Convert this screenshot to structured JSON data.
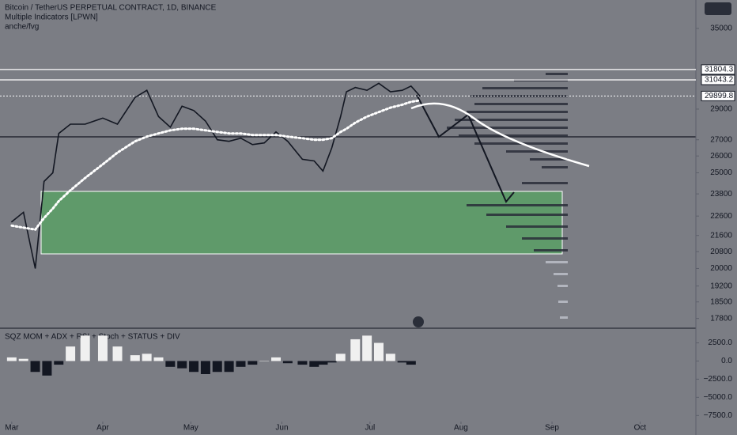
{
  "chart_data": [
    {
      "type": "line",
      "title": "Bitcoin / TetherUS PERPETUAL CONTRACT, 1D, BINANCE",
      "indicators": [
        "Multiple Indicators [LPWN]",
        "anche/fvg"
      ],
      "log_scale": true,
      "x": [
        0,
        4,
        8,
        11,
        14,
        16,
        20,
        25,
        31,
        36,
        42,
        46,
        50,
        54,
        58,
        62,
        66,
        70,
        74,
        78,
        82,
        86,
        90,
        94,
        99,
        103,
        106,
        109,
        112,
        114,
        117,
        121,
        125,
        129,
        133,
        136,
        139
      ],
      "series": [
        {
          "color": "#131722",
          "values": [
            22300,
            22800,
            20000,
            24500,
            25000,
            27400,
            28000,
            28000,
            28400,
            28000,
            29800,
            30300,
            28500,
            27800,
            29200,
            28900,
            28200,
            27000,
            26900,
            27100,
            26700,
            26800,
            27500,
            26900,
            25800,
            25700,
            25100,
            26500,
            28500,
            30200,
            30500,
            30300,
            30800,
            30200,
            30300,
            30600,
            29900
          ]
        },
        {
          "color": "#ffffff",
          "style": "dots",
          "values": [
            22100,
            22000,
            21900,
            22500,
            23000,
            23400,
            24000,
            24700,
            25500,
            26200,
            26900,
            27200,
            27400,
            27600,
            27700,
            27700,
            27600,
            27500,
            27400,
            27400,
            27300,
            27300,
            27300,
            27200,
            27100,
            27000,
            27000,
            27100,
            27500,
            27700,
            28100,
            28500,
            28800,
            29100,
            29300,
            29500,
            29600
          ]
        }
      ],
      "levels": [
        31804.3,
        31043.2,
        29899.8
      ],
      "xlim": [
        -4,
        233
      ],
      "xticks": [
        {
          "value": 0,
          "label": "Mar"
        },
        {
          "value": 31,
          "label": "Apr"
        },
        {
          "value": 61,
          "label": "May"
        },
        {
          "value": 92,
          "label": "Jun"
        },
        {
          "value": 122,
          "label": "Jul"
        },
        {
          "value": 153,
          "label": "Aug"
        },
        {
          "value": 184,
          "label": "Sep"
        },
        {
          "value": 214,
          "label": "Oct"
        }
      ],
      "ylim": [
        17400,
        37400
      ],
      "yticks": [
        35000,
        29000,
        27000,
        26000,
        25000,
        23800,
        22600,
        21600,
        20800,
        20000,
        19200,
        18500,
        17800
      ]
    },
    {
      "type": "bar",
      "title": "SQZ MOM + ADX + RSI + Stoch + STATUS + DIV",
      "x": [
        0,
        4,
        8,
        12,
        16,
        20,
        25,
        31,
        36,
        42,
        46,
        50,
        54,
        58,
        62,
        66,
        70,
        74,
        78,
        82,
        86,
        90,
        94,
        99,
        103,
        106,
        109,
        112,
        117,
        121,
        125,
        129,
        133,
        136
      ],
      "values": [
        500,
        300,
        -1500,
        -2000,
        -500,
        2000,
        3500,
        3500,
        2000,
        800,
        1000,
        500,
        -800,
        -1000,
        -1500,
        -1800,
        -1500,
        -1500,
        -800,
        -500,
        0,
        500,
        -300,
        -500,
        -800,
        -500,
        -200,
        1000,
        3000,
        3500,
        2500,
        1000,
        -200,
        -500
      ],
      "xlim": [
        -4,
        233
      ],
      "ylim": [
        -9100,
        4300
      ],
      "yticks": [
        {
          "value": 2500,
          "label": "2500.0"
        },
        {
          "value": 0,
          "label": "0.0"
        },
        {
          "value": -2500,
          "label": "−2500.0"
        },
        {
          "value": -5000,
          "label": "−5000.0"
        },
        {
          "value": -7500,
          "label": "−7500.0"
        }
      ]
    }
  ]
}
